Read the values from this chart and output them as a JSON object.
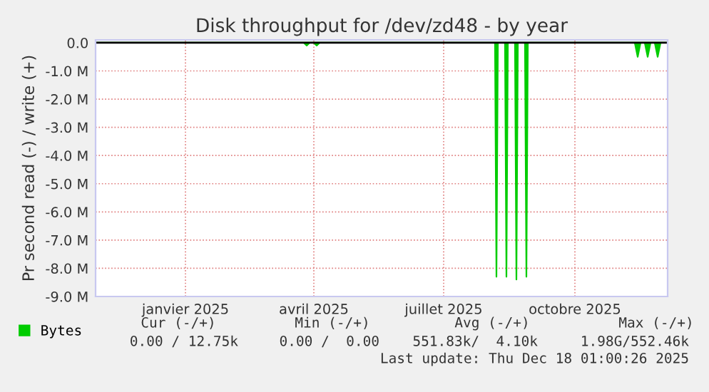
{
  "chart_data": {
    "type": "area",
    "title": "Disk throughput for /dev/zd48 - by year",
    "ylabel": "Pr second read (-) / write (+)",
    "x": [
      "2024-11-12",
      "2025-04-07",
      "2025-04-09",
      "2025-04-11",
      "2025-04-14",
      "2025-04-16",
      "2025-04-18",
      "2025-08-19",
      "2025-08-20",
      "2025-08-21",
      "2025-08-26",
      "2025-08-27",
      "2025-08-28",
      "2025-09-02",
      "2025-09-03",
      "2025-09-04",
      "2025-09-09",
      "2025-09-10",
      "2025-09-11",
      "2025-11-25",
      "2025-11-27",
      "2025-11-29",
      "2025-12-02",
      "2025-12-04",
      "2025-12-06",
      "2025-12-09",
      "2025-12-11",
      "2025-12-13",
      "2025-12-18"
    ],
    "series": [
      {
        "name": "Bytes",
        "color": "#00cc00",
        "values": [
          0,
          0,
          -0.1,
          0,
          0,
          -0.1,
          0,
          0,
          -8.3,
          0,
          0,
          -8.3,
          0,
          0,
          -8.4,
          0,
          0,
          -8.3,
          0,
          0,
          -0.5,
          0,
          0,
          -0.5,
          0,
          0,
          -0.5,
          0,
          0
        ]
      }
    ],
    "xlim": [
      "2024-11-12",
      "2025-12-18"
    ],
    "xticks": [
      {
        "value": "2025-01-14",
        "label": "janvier 2025"
      },
      {
        "value": "2025-04-14",
        "label": "avril 2025"
      },
      {
        "value": "2025-07-14",
        "label": "juillet 2025"
      },
      {
        "value": "2025-10-14",
        "label": "octobre 2025"
      }
    ],
    "ylim": [
      -9,
      0.1
    ],
    "yticks": [
      {
        "value": -9,
        "label": "-9.0 M"
      },
      {
        "value": -8,
        "label": "-8.0 M"
      },
      {
        "value": -7,
        "label": "-7.0 M"
      },
      {
        "value": -6,
        "label": "-6.0 M"
      },
      {
        "value": -5,
        "label": "-5.0 M"
      },
      {
        "value": -4,
        "label": "-4.0 M"
      },
      {
        "value": -3,
        "label": "-3.0 M"
      },
      {
        "value": -2,
        "label": "-2.0 M"
      },
      {
        "value": -1,
        "label": "-1.0 M"
      },
      {
        "value": 0,
        "label": "0.0"
      }
    ],
    "ref_lines": [
      {
        "axis": "y",
        "value": 0,
        "color": "#000000"
      }
    ],
    "grid": true,
    "legend": "bottom left",
    "annotations": [
      "Cur (-/+)",
      "Min (-/+)",
      "Avg (-/+)",
      "Max (-/+)",
      "0.00 / 12.75k",
      "0.00 /  0.00",
      "551.83k/  4.10k",
      "1.98G/552.46k",
      "Last update: Thu Dec 18 01:00:26 2025"
    ]
  }
}
